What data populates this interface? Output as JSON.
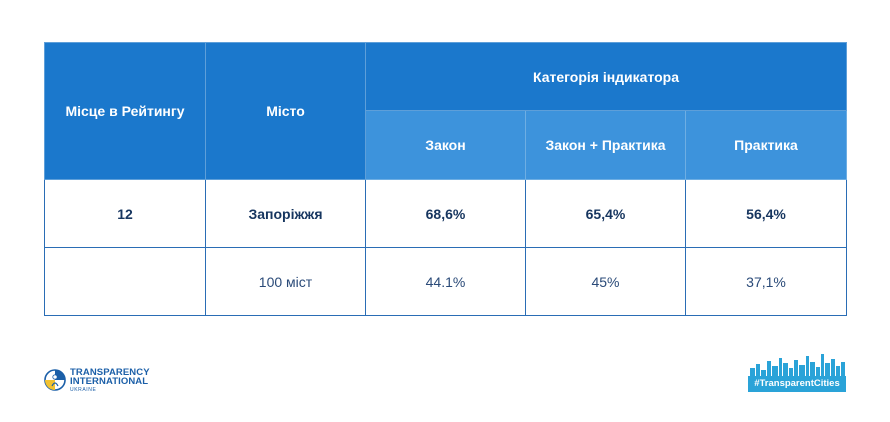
{
  "table": {
    "header": {
      "rank": "Місце в Рейтингу",
      "city": "Місто",
      "category_group": "Категорія індикатора",
      "law": "Закон",
      "law_practice": "Закон + Практика",
      "practice": "Практика"
    },
    "rows": [
      {
        "rank": "12",
        "city": "Запоріжжя",
        "law": "68,6%",
        "law_practice": "65,4%",
        "practice": "56,4%"
      },
      {
        "rank": "",
        "city": "100 міст",
        "law": "44.1%",
        "law_practice": "45%",
        "practice": "37,1%"
      }
    ]
  },
  "logos": {
    "ti_line1": "TRANSPARENCY",
    "ti_line2": "INTERNATIONAL",
    "ti_line3": "UKRAINE",
    "tc_label": "#TransparentCities"
  },
  "colors": {
    "header_dark": "#1b78cc",
    "header_light": "#3d93dc",
    "border": "#2a6db5",
    "text": "#16355f",
    "tc_accent": "#2aa3d8"
  }
}
